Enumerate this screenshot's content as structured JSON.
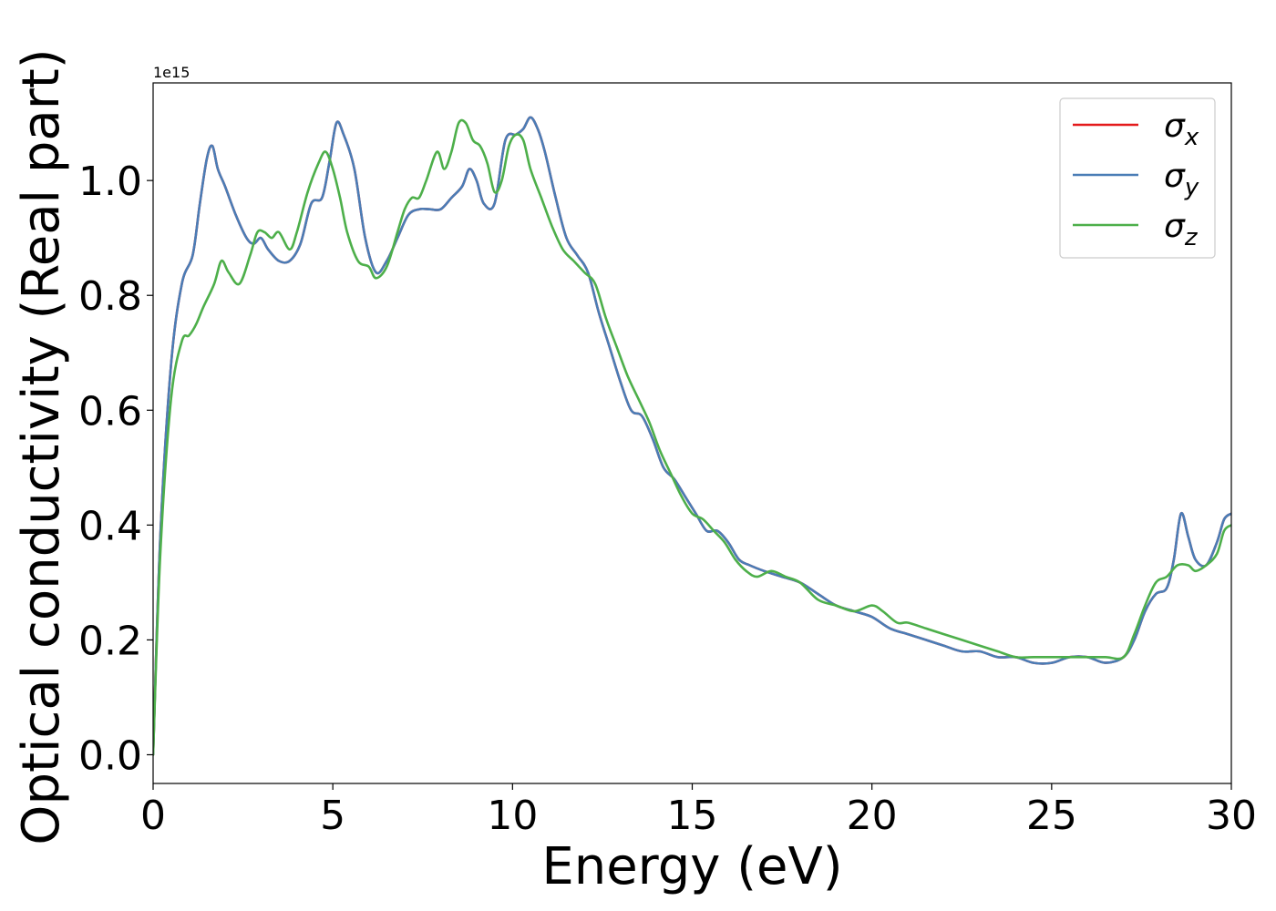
{
  "chart_data": {
    "type": "line",
    "title": "",
    "xlabel": "Energy (eV)",
    "ylabel": "Optical conductivity (Real part)",
    "y_offset_label": "1e15",
    "xlim": [
      0,
      30
    ],
    "ylim": [
      -0.05,
      1.17
    ],
    "xticks": [
      0,
      5,
      10,
      15,
      20,
      25,
      30
    ],
    "xtick_labels": [
      "0",
      "5",
      "10",
      "15",
      "20",
      "25",
      "30"
    ],
    "yticks": [
      0.0,
      0.2,
      0.4,
      0.6,
      0.8,
      1.0
    ],
    "ytick_labels": [
      "0.0",
      "0.2",
      "0.4",
      "0.6",
      "0.8",
      "1.0"
    ],
    "grid": false,
    "legend_position": "top-right",
    "series": [
      {
        "name": "σx",
        "label_base": "σ",
        "label_sub": "x",
        "color": "#e41a1c",
        "x": [
          0,
          0.2,
          0.5,
          0.8,
          1.1,
          1.3,
          1.5,
          1.65,
          1.8,
          2.0,
          2.3,
          2.6,
          2.8,
          3.0,
          3.2,
          3.5,
          3.8,
          4.1,
          4.4,
          4.7,
          4.9,
          5.1,
          5.3,
          5.6,
          5.9,
          6.2,
          6.5,
          6.8,
          7.1,
          7.4,
          7.7,
          8.0,
          8.3,
          8.6,
          8.8,
          9.0,
          9.2,
          9.5,
          9.8,
          10.1,
          10.3,
          10.5,
          10.7,
          10.9,
          11.2,
          11.5,
          11.8,
          12.1,
          12.4,
          12.7,
          13.0,
          13.3,
          13.6,
          13.9,
          14.2,
          14.5,
          14.8,
          15.1,
          15.4,
          15.7,
          16.0,
          16.3,
          16.6,
          17.0,
          17.5,
          18.0,
          18.5,
          19.0,
          19.5,
          20.0,
          20.5,
          21.0,
          21.5,
          22.0,
          22.5,
          23.0,
          23.5,
          24.0,
          24.5,
          25.0,
          25.5,
          26.0,
          26.5,
          27.0,
          27.3,
          27.6,
          27.9,
          28.2,
          28.4,
          28.6,
          28.8,
          29.0,
          29.3,
          29.6,
          29.8,
          30.0
        ],
        "y": [
          0.0,
          0.38,
          0.68,
          0.82,
          0.87,
          0.96,
          1.04,
          1.06,
          1.02,
          0.99,
          0.94,
          0.9,
          0.89,
          0.9,
          0.88,
          0.86,
          0.86,
          0.89,
          0.96,
          0.97,
          1.03,
          1.1,
          1.08,
          1.02,
          0.9,
          0.84,
          0.86,
          0.9,
          0.94,
          0.95,
          0.95,
          0.95,
          0.97,
          0.99,
          1.02,
          1.0,
          0.96,
          0.96,
          1.07,
          1.08,
          1.09,
          1.11,
          1.09,
          1.05,
          0.97,
          0.9,
          0.87,
          0.84,
          0.77,
          0.71,
          0.65,
          0.6,
          0.59,
          0.55,
          0.5,
          0.48,
          0.45,
          0.42,
          0.39,
          0.39,
          0.37,
          0.34,
          0.33,
          0.32,
          0.31,
          0.3,
          0.28,
          0.26,
          0.25,
          0.24,
          0.22,
          0.21,
          0.2,
          0.19,
          0.18,
          0.18,
          0.17,
          0.17,
          0.16,
          0.16,
          0.17,
          0.17,
          0.16,
          0.17,
          0.2,
          0.25,
          0.28,
          0.29,
          0.34,
          0.42,
          0.38,
          0.34,
          0.33,
          0.37,
          0.41,
          0.42
        ]
      },
      {
        "name": "σy",
        "label_base": "σ",
        "label_sub": "y",
        "color": "#4a7db6",
        "x": [
          0,
          0.2,
          0.5,
          0.8,
          1.1,
          1.3,
          1.5,
          1.65,
          1.8,
          2.0,
          2.3,
          2.6,
          2.8,
          3.0,
          3.2,
          3.5,
          3.8,
          4.1,
          4.4,
          4.7,
          4.9,
          5.1,
          5.3,
          5.6,
          5.9,
          6.2,
          6.5,
          6.8,
          7.1,
          7.4,
          7.7,
          8.0,
          8.3,
          8.6,
          8.8,
          9.0,
          9.2,
          9.5,
          9.8,
          10.1,
          10.3,
          10.5,
          10.7,
          10.9,
          11.2,
          11.5,
          11.8,
          12.1,
          12.4,
          12.7,
          13.0,
          13.3,
          13.6,
          13.9,
          14.2,
          14.5,
          14.8,
          15.1,
          15.4,
          15.7,
          16.0,
          16.3,
          16.6,
          17.0,
          17.5,
          18.0,
          18.5,
          19.0,
          19.5,
          20.0,
          20.5,
          21.0,
          21.5,
          22.0,
          22.5,
          23.0,
          23.5,
          24.0,
          24.5,
          25.0,
          25.5,
          26.0,
          26.5,
          27.0,
          27.3,
          27.6,
          27.9,
          28.2,
          28.4,
          28.6,
          28.8,
          29.0,
          29.3,
          29.6,
          29.8,
          30.0
        ],
        "y": [
          0.0,
          0.38,
          0.68,
          0.82,
          0.87,
          0.96,
          1.04,
          1.06,
          1.02,
          0.99,
          0.94,
          0.9,
          0.89,
          0.9,
          0.88,
          0.86,
          0.86,
          0.89,
          0.96,
          0.97,
          1.03,
          1.1,
          1.08,
          1.02,
          0.9,
          0.84,
          0.86,
          0.9,
          0.94,
          0.95,
          0.95,
          0.95,
          0.97,
          0.99,
          1.02,
          1.0,
          0.96,
          0.96,
          1.07,
          1.08,
          1.09,
          1.11,
          1.09,
          1.05,
          0.97,
          0.9,
          0.87,
          0.84,
          0.77,
          0.71,
          0.65,
          0.6,
          0.59,
          0.55,
          0.5,
          0.48,
          0.45,
          0.42,
          0.39,
          0.39,
          0.37,
          0.34,
          0.33,
          0.32,
          0.31,
          0.3,
          0.28,
          0.26,
          0.25,
          0.24,
          0.22,
          0.21,
          0.2,
          0.19,
          0.18,
          0.18,
          0.17,
          0.17,
          0.16,
          0.16,
          0.17,
          0.17,
          0.16,
          0.17,
          0.2,
          0.25,
          0.28,
          0.29,
          0.34,
          0.42,
          0.38,
          0.34,
          0.33,
          0.37,
          0.41,
          0.42
        ]
      },
      {
        "name": "σz",
        "label_base": "σ",
        "label_sub": "z",
        "color": "#4daf4a",
        "x": [
          0,
          0.2,
          0.5,
          0.8,
          1.0,
          1.2,
          1.4,
          1.7,
          1.9,
          2.1,
          2.4,
          2.7,
          2.9,
          3.1,
          3.3,
          3.5,
          3.8,
          4.0,
          4.3,
          4.6,
          4.8,
          5.0,
          5.2,
          5.4,
          5.7,
          6.0,
          6.2,
          6.5,
          6.8,
          7.0,
          7.2,
          7.4,
          7.6,
          7.9,
          8.1,
          8.3,
          8.5,
          8.7,
          8.9,
          9.1,
          9.3,
          9.5,
          9.7,
          9.9,
          10.1,
          10.3,
          10.5,
          10.8,
          11.1,
          11.4,
          11.7,
          12.0,
          12.3,
          12.6,
          12.9,
          13.2,
          13.5,
          13.8,
          14.1,
          14.4,
          14.7,
          15.0,
          15.3,
          15.6,
          15.9,
          16.2,
          16.5,
          16.8,
          17.2,
          17.6,
          18.0,
          18.5,
          19.0,
          19.5,
          20.0,
          20.3,
          20.7,
          21.0,
          21.5,
          22.0,
          22.5,
          23.0,
          23.5,
          24.0,
          24.5,
          25.0,
          25.5,
          26.0,
          26.5,
          27.0,
          27.3,
          27.6,
          27.9,
          28.2,
          28.5,
          28.8,
          29.0,
          29.3,
          29.6,
          29.8,
          30.0
        ],
        "y": [
          0.0,
          0.35,
          0.62,
          0.72,
          0.73,
          0.75,
          0.78,
          0.82,
          0.86,
          0.84,
          0.82,
          0.87,
          0.91,
          0.91,
          0.9,
          0.91,
          0.88,
          0.91,
          0.98,
          1.03,
          1.05,
          1.02,
          0.97,
          0.91,
          0.86,
          0.85,
          0.83,
          0.85,
          0.91,
          0.95,
          0.97,
          0.97,
          1.0,
          1.05,
          1.02,
          1.05,
          1.1,
          1.1,
          1.07,
          1.06,
          1.03,
          0.98,
          1.0,
          1.06,
          1.08,
          1.07,
          1.02,
          0.97,
          0.92,
          0.88,
          0.86,
          0.84,
          0.82,
          0.76,
          0.71,
          0.66,
          0.62,
          0.58,
          0.53,
          0.49,
          0.45,
          0.42,
          0.41,
          0.39,
          0.37,
          0.34,
          0.32,
          0.31,
          0.32,
          0.31,
          0.3,
          0.27,
          0.26,
          0.25,
          0.26,
          0.25,
          0.23,
          0.23,
          0.22,
          0.21,
          0.2,
          0.19,
          0.18,
          0.17,
          0.17,
          0.17,
          0.17,
          0.17,
          0.17,
          0.17,
          0.21,
          0.26,
          0.3,
          0.31,
          0.33,
          0.33,
          0.32,
          0.33,
          0.35,
          0.39,
          0.4
        ]
      }
    ]
  }
}
